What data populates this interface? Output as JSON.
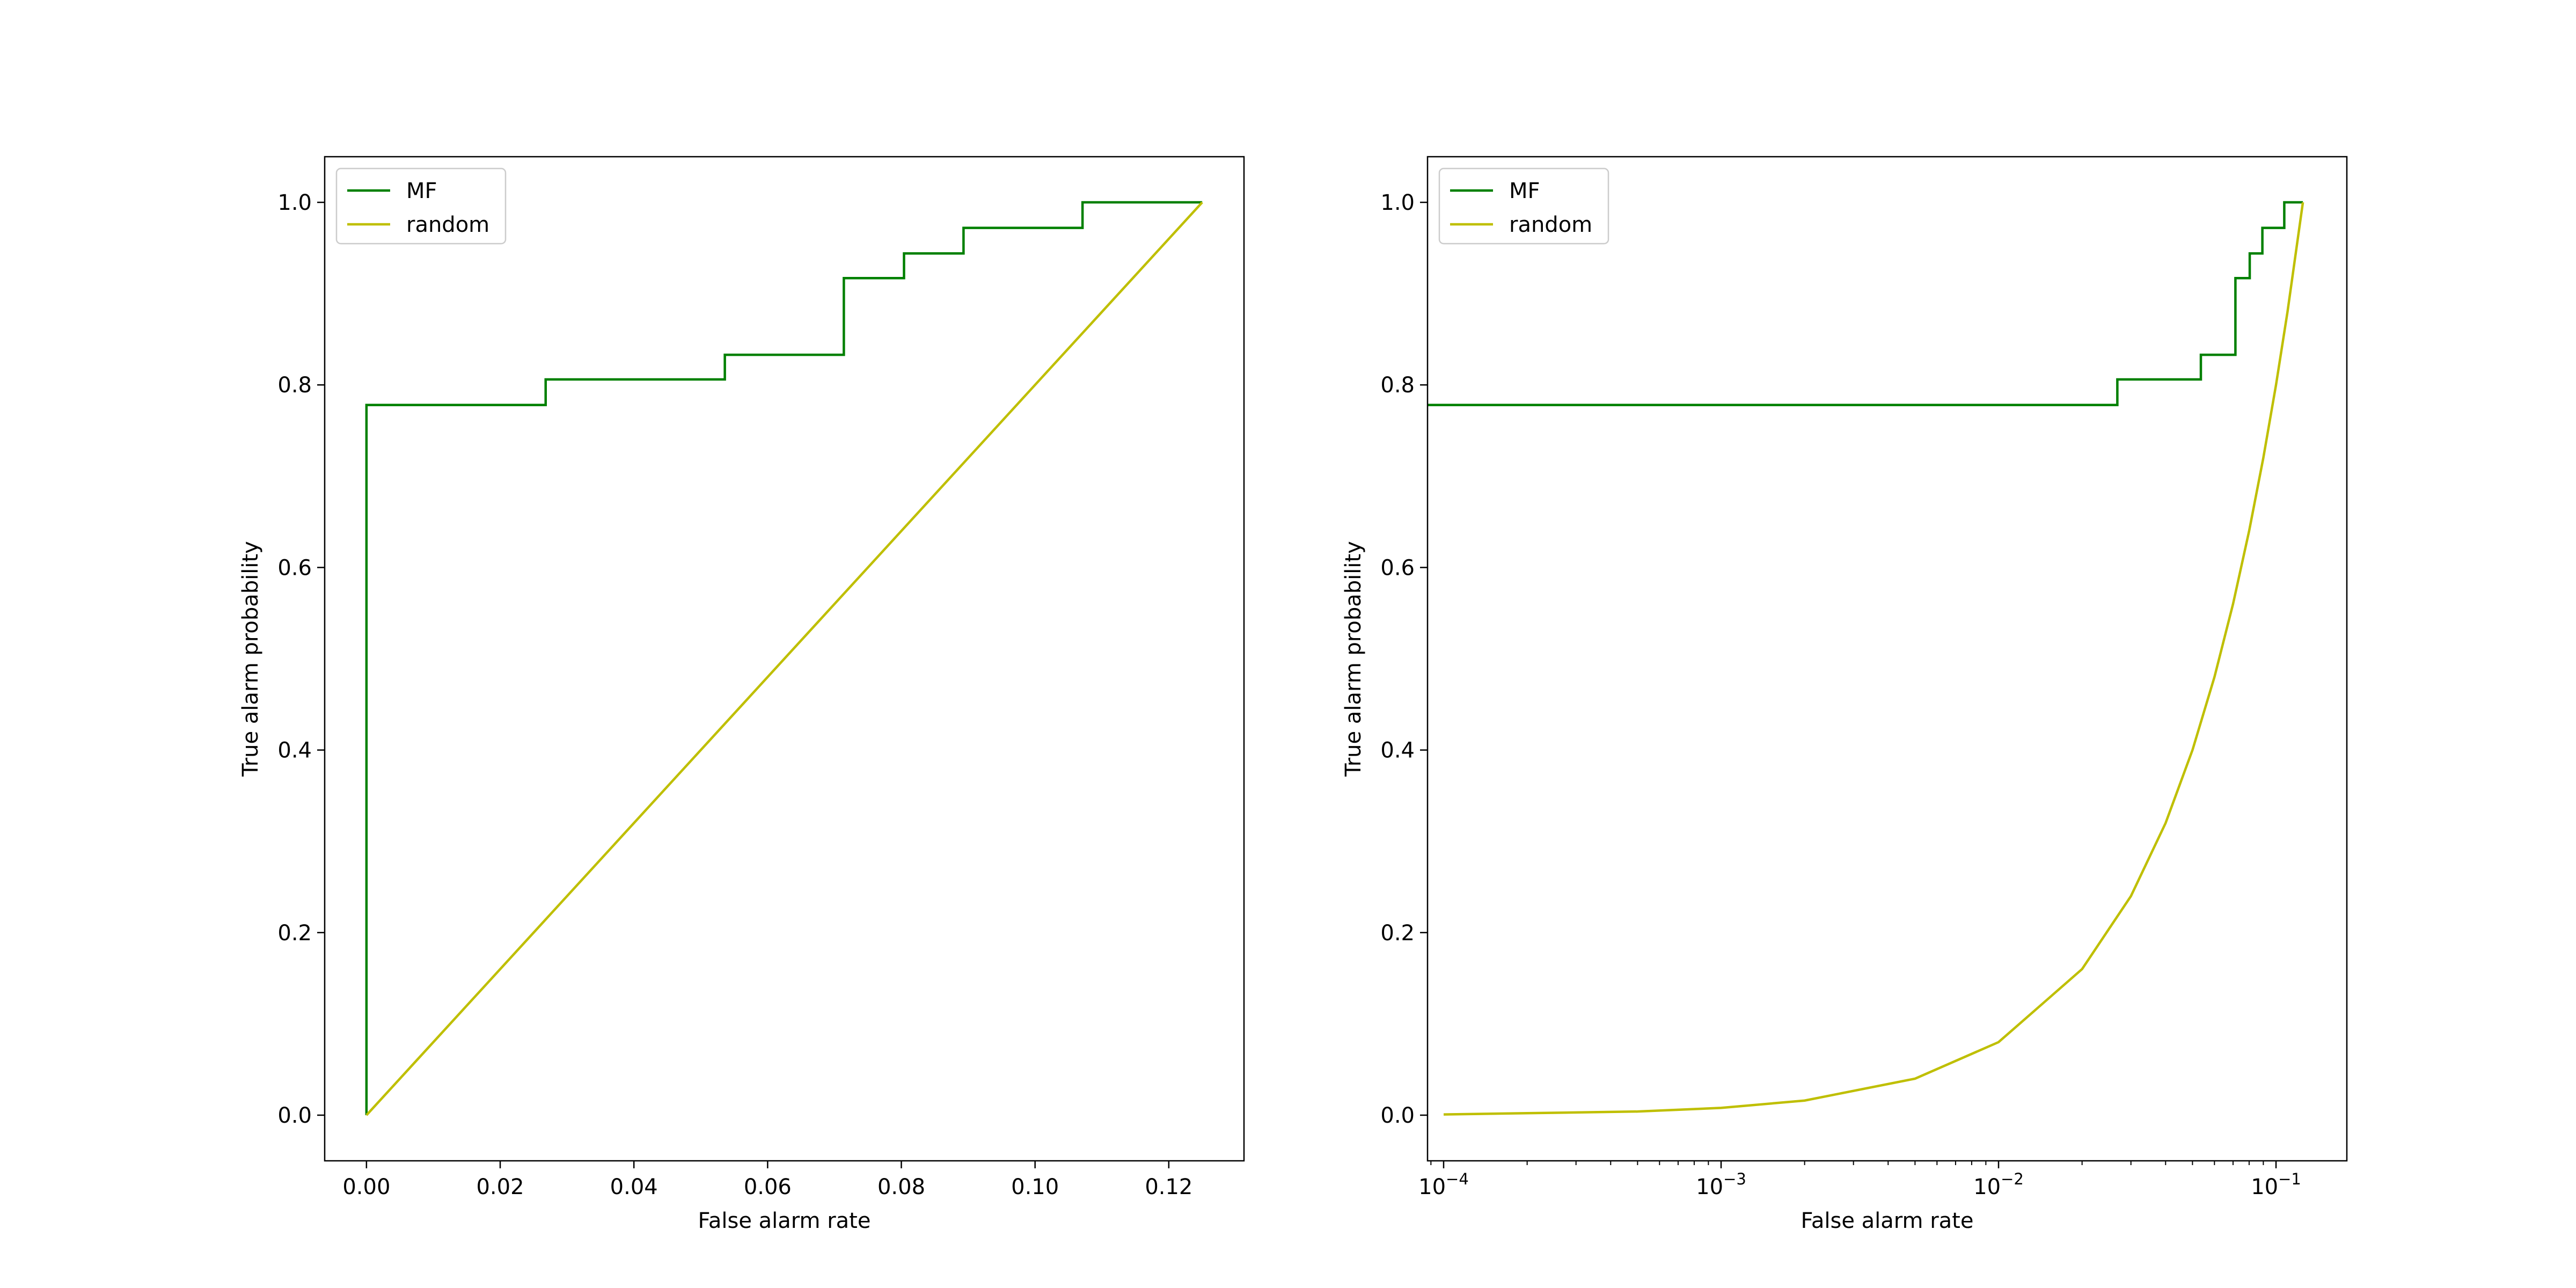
{
  "figure": {
    "background": "#ffffff"
  },
  "colors": {
    "MF": "#008000",
    "random": "#bfbf00",
    "axes": "#000000",
    "legend_border": "#cccccc"
  },
  "chart_data": [
    {
      "type": "line",
      "xscale": "linear",
      "xlabel": "False alarm rate",
      "ylabel": "True alarm probability",
      "xlim": [
        -0.00625,
        0.13125
      ],
      "ylim": [
        -0.05,
        1.05
      ],
      "xticks": [
        0.0,
        0.02,
        0.04,
        0.06,
        0.08,
        0.1,
        0.12
      ],
      "xtick_labels": [
        "0.00",
        "0.02",
        "0.04",
        "0.06",
        "0.08",
        "0.10",
        "0.12"
      ],
      "yticks": [
        0.0,
        0.2,
        0.4,
        0.6,
        0.8,
        1.0
      ],
      "ytick_labels": [
        "0.0",
        "0.2",
        "0.4",
        "0.6",
        "0.8",
        "1.0"
      ],
      "grid": false,
      "legend": "upper left",
      "series": [
        {
          "name": "MF",
          "color": "#008000",
          "x": [
            0.0,
            0.0,
            0.0268,
            0.0268,
            0.0536,
            0.0536,
            0.0714,
            0.0714,
            0.0804,
            0.0804,
            0.0893,
            0.0893,
            0.1071,
            0.1071,
            0.125
          ],
          "y": [
            0.0,
            0.778,
            0.778,
            0.806,
            0.806,
            0.833,
            0.833,
            0.917,
            0.917,
            0.944,
            0.944,
            0.972,
            0.972,
            1.0,
            1.0
          ]
        },
        {
          "name": "random",
          "color": "#bfbf00",
          "x": [
            0.0,
            0.125
          ],
          "y": [
            0.0,
            1.0
          ]
        }
      ]
    },
    {
      "type": "line",
      "xscale": "log",
      "xlabel": "False alarm rate",
      "ylabel": "True alarm probability",
      "xlim": [
        8.75e-05,
        0.18
      ],
      "ylim": [
        -0.05,
        1.05
      ],
      "xticks": [
        0.0001,
        0.001,
        0.01,
        0.1
      ],
      "xtick_labels": [
        {
          "base": "10",
          "exp": "−4"
        },
        {
          "base": "10",
          "exp": "−3"
        },
        {
          "base": "10",
          "exp": "−2"
        },
        {
          "base": "10",
          "exp": "−1"
        }
      ],
      "yticks": [
        0.0,
        0.2,
        0.4,
        0.6,
        0.8,
        1.0
      ],
      "ytick_labels": [
        "0.0",
        "0.2",
        "0.4",
        "0.6",
        "0.8",
        "1.0"
      ],
      "grid": false,
      "legend": "upper left",
      "series": [
        {
          "name": "MF",
          "color": "#008000",
          "x": [
            8.75e-05,
            0.0268,
            0.0268,
            0.0536,
            0.0536,
            0.0714,
            0.0714,
            0.0804,
            0.0804,
            0.0893,
            0.0893,
            0.1071,
            0.1071,
            0.125
          ],
          "y": [
            0.778,
            0.778,
            0.806,
            0.806,
            0.833,
            0.833,
            0.917,
            0.917,
            0.944,
            0.944,
            0.972,
            0.972,
            1.0,
            1.0
          ]
        },
        {
          "name": "random",
          "color": "#bfbf00",
          "x": [
            0.0001,
            0.0005,
            0.001,
            0.002,
            0.005,
            0.01,
            0.02,
            0.03,
            0.04,
            0.05,
            0.06,
            0.07,
            0.08,
            0.09,
            0.1,
            0.11,
            0.125
          ],
          "y": [
            0.0008,
            0.004,
            0.008,
            0.016,
            0.04,
            0.08,
            0.16,
            0.24,
            0.32,
            0.4,
            0.48,
            0.56,
            0.64,
            0.72,
            0.8,
            0.88,
            1.0
          ]
        }
      ]
    }
  ]
}
